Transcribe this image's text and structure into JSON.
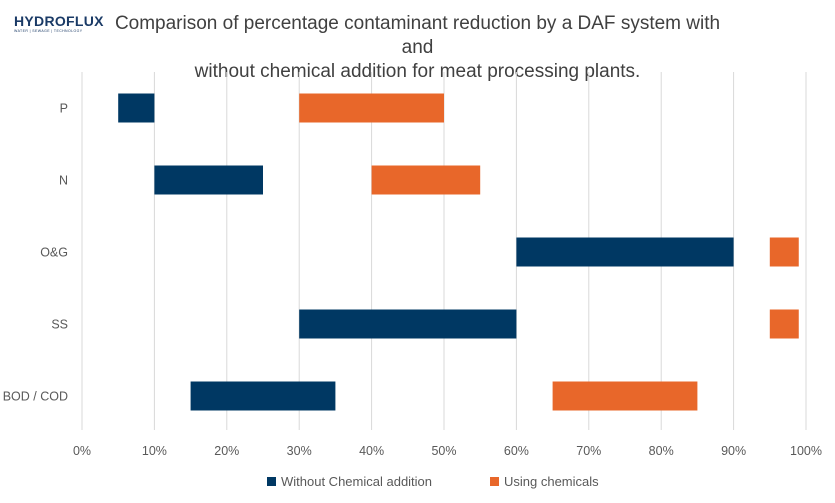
{
  "logo": {
    "name": "HYDROFLUX",
    "tagline": "WATER | SEWAGE | TECHNOLOGY"
  },
  "chart_data": {
    "type": "floating-bar",
    "orientation": "horizontal",
    "title_lines": [
      "Comparison of percentage contaminant reduction by a DAF system with and",
      "without chemical addition for meat processing plants."
    ],
    "categories": [
      "P",
      "N",
      "O&G",
      "SS",
      "BOD / COD"
    ],
    "x_ticks": [
      "0%",
      "10%",
      "20%",
      "30%",
      "40%",
      "50%",
      "60%",
      "70%",
      "80%",
      "90%",
      "100%"
    ],
    "xlim": [
      0,
      100
    ],
    "grid": true,
    "legend_position": "bottom",
    "series": [
      {
        "name": "Without Chemical addition",
        "color": "#003863",
        "ranges": [
          [
            5,
            10
          ],
          [
            10,
            25
          ],
          [
            60,
            90
          ],
          [
            30,
            60
          ],
          [
            15,
            35
          ]
        ]
      },
      {
        "name": "Using chemicals",
        "color": "#E8672A",
        "ranges": [
          [
            30,
            50
          ],
          [
            40,
            55
          ],
          [
            95,
            99
          ],
          [
            95,
            99
          ],
          [
            65,
            85
          ]
        ]
      }
    ]
  }
}
